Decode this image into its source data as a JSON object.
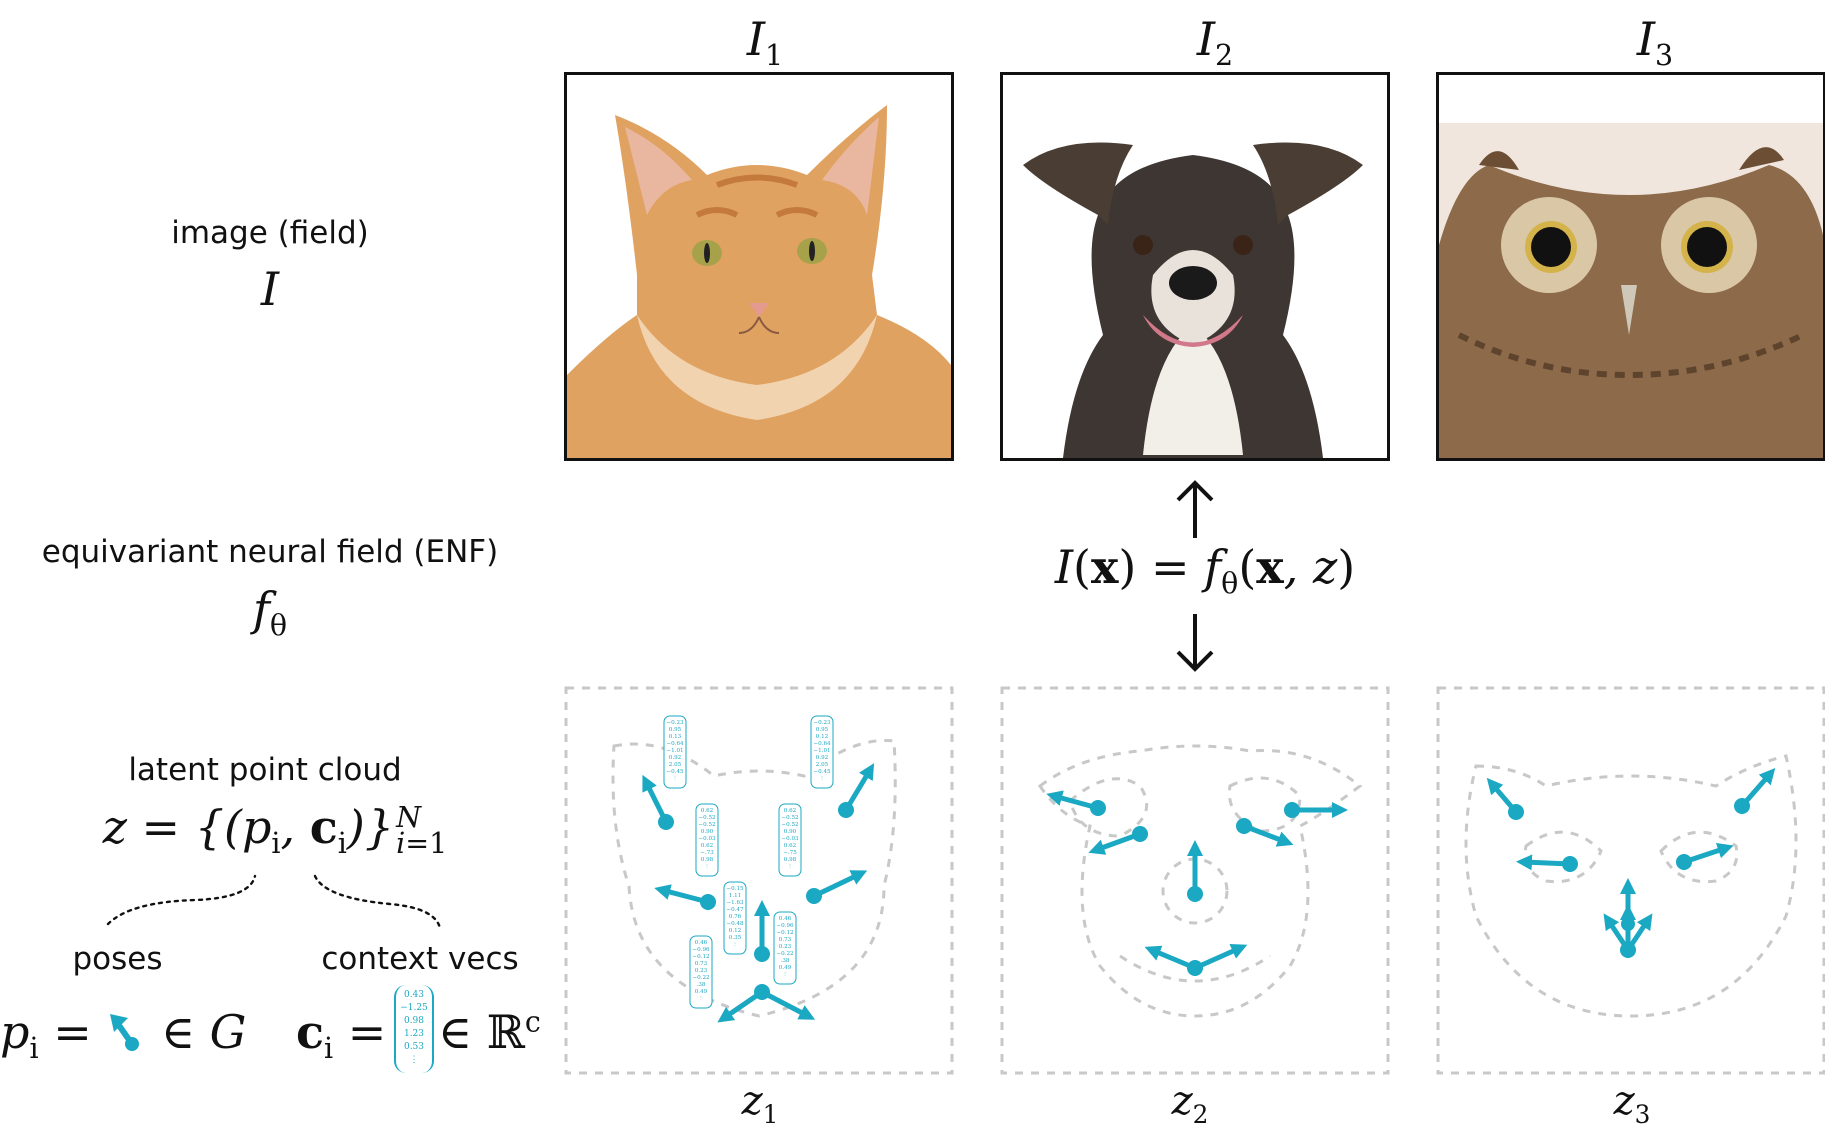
{
  "left": {
    "image_label": "image (field)",
    "image_symbol": "I",
    "enf_label": "equivariant neural field (ENF)",
    "enf_symbol_base": "f",
    "enf_symbol_sub": "θ",
    "latent_label": "latent point cloud",
    "poses_label": "poses",
    "context_label": "context vecs"
  },
  "images": [
    {
      "name": "I",
      "sub": "1",
      "subject": "orange-cat-photo"
    },
    {
      "name": "I",
      "sub": "2",
      "subject": "dog-photo"
    },
    {
      "name": "I",
      "sub": "3",
      "subject": "owl-photo"
    }
  ],
  "latents": [
    {
      "name": "z",
      "sub": "1"
    },
    {
      "name": "z",
      "sub": "2"
    },
    {
      "name": "z",
      "sub": "3"
    }
  ],
  "context_vector_values": [
    "0.43",
    "−1.25",
    "0.98",
    "1.23",
    "0.53",
    "⋮"
  ],
  "z1_vectors": [
    [
      "−0.23",
      "0.95",
      "0.13",
      "−0.64",
      "−1.01",
      "0.92",
      "2.05",
      "−0.45",
      "⋮"
    ],
    [
      "−0.23",
      "0.95",
      "0.12",
      "−0.64",
      "−1.01",
      "0.92",
      "2.05",
      "−0.45",
      "⋮"
    ],
    [
      "0.62",
      "−0.52",
      "−0.52",
      "0.90",
      "−0.03",
      "0.62",
      "−.73",
      "0.98",
      "⋮"
    ],
    [
      "0.62",
      "−0.52",
      "−0.52",
      "0.90",
      "−0.03",
      "0.62",
      "−.75",
      "0.98",
      "⋮"
    ],
    [
      "−0.15",
      "1.11",
      "−1.63",
      "−0.47",
      "0.76",
      "−0.48",
      "0.12",
      "0.35",
      "⋮"
    ],
    [
      "0.46",
      "−0.96",
      "−0.12",
      "0.73",
      "0.23",
      "−0.22",
      ".38",
      "0.49",
      "⋮"
    ],
    [
      "0.46",
      "−0.96",
      "−0.12",
      "0.73",
      "0.23",
      "−0.22",
      ".38",
      "0.49",
      "⋮"
    ]
  ],
  "colors": {
    "accent": "#1aa8c3",
    "dashed": "#c8c8c8"
  }
}
